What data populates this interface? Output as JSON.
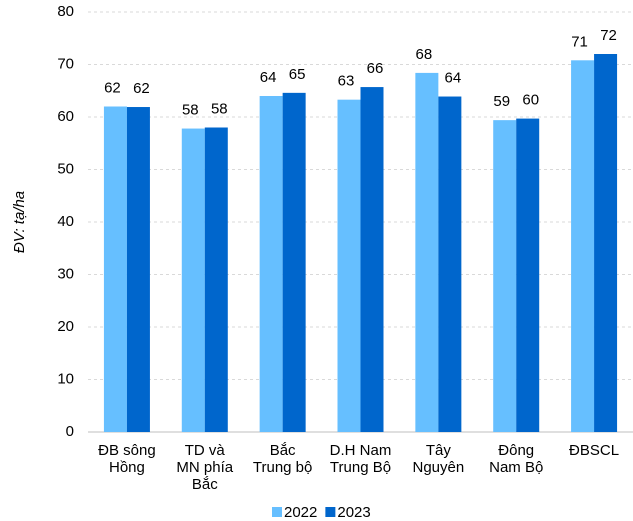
{
  "chart_data": {
    "type": "bar",
    "y_label": "ĐV: tạ/ha",
    "categories": [
      "ĐB sông\nHồng",
      "TD và\nMN phía\nBắc",
      "Bắc\nTrung bộ",
      "D.H Nam\nTrung Bộ",
      "Tây\nNguyên",
      "Đông\nNam Bộ",
      "ĐBSCL"
    ],
    "series": [
      {
        "name": "2022",
        "color": "#66bfff",
        "label_color": "#33aaee",
        "values": [
          62.0,
          57.8,
          64.0,
          63.3,
          68.4,
          59.4,
          70.8
        ],
        "value_labels": [
          "62",
          "58",
          "64",
          "63",
          "68",
          "59",
          "71"
        ]
      },
      {
        "name": "2023",
        "color": "#0066cc",
        "label_color": "#1f2d5a",
        "values": [
          61.9,
          58.0,
          64.6,
          65.7,
          63.9,
          59.7,
          72.0
        ],
        "value_labels": [
          "62",
          "58",
          "65",
          "66",
          "64",
          "60",
          "72"
        ]
      }
    ],
    "ylim": [
      0,
      80
    ],
    "yticks": [
      0,
      10,
      20,
      30,
      40,
      50,
      60,
      70,
      80
    ],
    "grid": true,
    "legend": "bottom"
  }
}
